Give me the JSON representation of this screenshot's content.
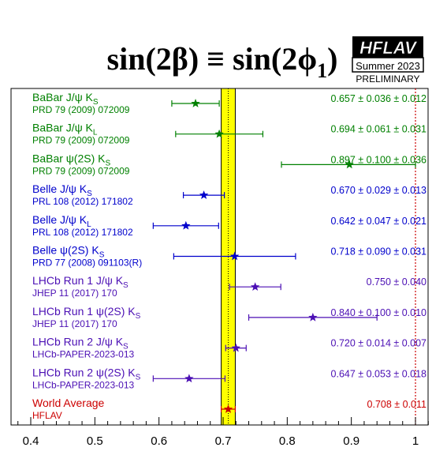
{
  "chart_data": {
    "type": "scatter",
    "title": {
      "prefix": "sin(2β) ≡ sin(2ϕ",
      "subscript": "1",
      "suffix": ")"
    },
    "badge": {
      "logo": "HFLAV",
      "season": "Summer 2023",
      "status": "PRELIMINARY"
    },
    "xlim": [
      0.37,
      1.05
    ],
    "xticks": [
      "0.4",
      "0.5",
      "0.6",
      "0.7",
      "0.8",
      "0.9",
      "1"
    ],
    "world_average_band": {
      "center": 0.708,
      "error": 0.011,
      "color": "#ffff00"
    },
    "reference_line": {
      "x": 1.0,
      "color": "#cc0000",
      "style": "dotted"
    },
    "grid": false,
    "legend": "none",
    "colors": {
      "babar": "#008000",
      "belle": "#0000cc",
      "lhcb": "#4b0fb4",
      "average": "#cc0000"
    },
    "points": [
      {
        "label": "BaBar J/ψ K",
        "sub": "S",
        "ref": "PRD 79 (2009) 072009",
        "value": 0.657,
        "err_lo": 0.037,
        "err_hi": 0.037,
        "display": "0.657 ± 0.036 ± 0.012",
        "group": "babar"
      },
      {
        "label": "BaBar J/ψ K",
        "sub": "L",
        "ref": "PRD 79 (2009) 072009",
        "value": 0.694,
        "err_lo": 0.068,
        "err_hi": 0.068,
        "display": "0.694 ± 0.061 ± 0.031",
        "group": "babar"
      },
      {
        "label": "BaBar ψ(2S) K",
        "sub": "S",
        "ref": "PRD 79 (2009) 072009",
        "value": 0.897,
        "err_lo": 0.106,
        "err_hi": 0.103,
        "display": "0.897 ± 0.100 ± 0.036",
        "group": "babar"
      },
      {
        "label": "Belle J/ψ K",
        "sub": "S",
        "ref": "PRL 108 (2012) 171802",
        "value": 0.67,
        "err_lo": 0.032,
        "err_hi": 0.032,
        "display": "0.670 ± 0.029 ± 0.013",
        "group": "belle"
      },
      {
        "label": "Belle J/ψ K",
        "sub": "L",
        "ref": "PRL 108 (2012) 171802",
        "value": 0.642,
        "err_lo": 0.051,
        "err_hi": 0.051,
        "display": "0.642 ± 0.047 ± 0.021",
        "group": "belle"
      },
      {
        "label": "Belle ψ(2S) K",
        "sub": "S",
        "ref": "PRD 77 (2008) 091103(R)",
        "value": 0.718,
        "err_lo": 0.095,
        "err_hi": 0.095,
        "display": "0.718 ± 0.090 ± 0.031",
        "group": "belle"
      },
      {
        "label": "LHCb Run 1 J/ψ K",
        "sub": "S",
        "ref": "JHEP 11 (2017) 170",
        "value": 0.75,
        "err_lo": 0.04,
        "err_hi": 0.04,
        "display": "0.750 ± 0.040",
        "group": "lhcb"
      },
      {
        "label": "LHCb Run 1 ψ(2S) K",
        "sub": "S",
        "ref": "JHEP 11 (2017) 170",
        "value": 0.84,
        "err_lo": 0.1,
        "err_hi": 0.1,
        "display": "0.840 ± 0.100 ± 0.010",
        "group": "lhcb"
      },
      {
        "label": "LHCb Run 2 J/ψ K",
        "sub": "S",
        "ref": "LHCb-PAPER-2023-013",
        "value": 0.72,
        "err_lo": 0.016,
        "err_hi": 0.016,
        "display": "0.720 ± 0.014 ± 0.007",
        "group": "lhcb"
      },
      {
        "label": "LHCb Run 2 ψ(2S) K",
        "sub": "S",
        "ref": "LHCb-PAPER-2023-013",
        "value": 0.647,
        "err_lo": 0.056,
        "err_hi": 0.056,
        "display": "0.647 ± 0.053 ± 0.018",
        "group": "lhcb"
      },
      {
        "label": "World Average",
        "sub": "",
        "ref": "HFLAV",
        "value": 0.708,
        "err_lo": 0.011,
        "err_hi": 0.011,
        "display": "0.708 ± 0.011",
        "group": "average"
      }
    ]
  }
}
